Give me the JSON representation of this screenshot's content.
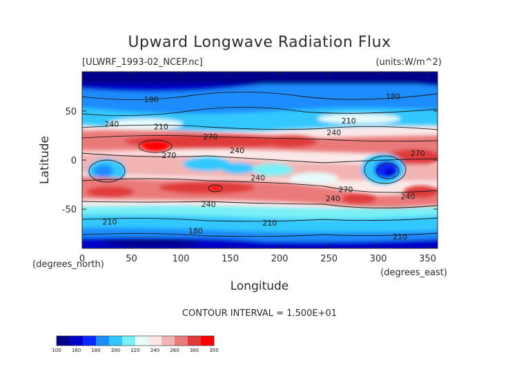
{
  "title": "Upward Longwave Radiation Flux",
  "file_label": "[ULWRF_1993-02_NCEP.nc]",
  "units_label": "(units:W/m^2)",
  "xlabel": "Longitude",
  "ylabel": "Latitude",
  "x_unit_label": "(degrees_east)",
  "y_unit_label": "(degrees_north)",
  "contour_interval_label": "CONTOUR INTERVAL = 1.500E+01",
  "chart_data": {
    "type": "heatmap",
    "title": "Upward Longwave Radiation Flux",
    "xlabel": "Longitude",
    "ylabel": "Latitude",
    "xlim": [
      0,
      360
    ],
    "ylim": [
      -90,
      90
    ],
    "x_ticks": [
      0,
      50,
      100,
      150,
      200,
      250,
      300,
      350
    ],
    "y_ticks": [
      50,
      0,
      -50
    ],
    "y_tick_labels": [
      "50",
      "0",
      "-50"
    ],
    "contour_interval": 15,
    "contour_labels": [
      {
        "text": "180",
        "lon": 70,
        "lat": 62
      },
      {
        "text": "180",
        "lon": 315,
        "lat": 65
      },
      {
        "text": "180",
        "lon": 115,
        "lat": -72
      },
      {
        "text": "210",
        "lon": 80,
        "lat": 34
      },
      {
        "text": "210",
        "lon": 270,
        "lat": 40
      },
      {
        "text": "210",
        "lon": 28,
        "lat": -63
      },
      {
        "text": "210",
        "lon": 190,
        "lat": -64
      },
      {
        "text": "210",
        "lon": 322,
        "lat": -78
      },
      {
        "text": "240",
        "lon": 30,
        "lat": 37
      },
      {
        "text": "240",
        "lon": 255,
        "lat": 28
      },
      {
        "text": "240",
        "lon": 157,
        "lat": 10
      },
      {
        "text": "240",
        "lon": 178,
        "lat": -18
      },
      {
        "text": "240",
        "lon": 128,
        "lat": -45
      },
      {
        "text": "240",
        "lon": 254,
        "lat": -39
      },
      {
        "text": "240",
        "lon": 330,
        "lat": -37
      },
      {
        "text": "270",
        "lon": 130,
        "lat": 24
      },
      {
        "text": "270",
        "lon": 88,
        "lat": 5
      },
      {
        "text": "270",
        "lon": 267,
        "lat": -30
      },
      {
        "text": "270",
        "lon": 340,
        "lat": 7
      }
    ],
    "colorbar": {
      "levels": [
        100,
        160,
        180,
        200,
        220,
        240,
        260,
        300,
        350
      ],
      "labels": [
        "100",
        "160",
        "180",
        "200",
        "220",
        "240",
        "260",
        "300",
        "350"
      ],
      "colors": [
        "#00008a",
        "#0000c8",
        "#0a28ff",
        "#1e8cff",
        "#32c8ff",
        "#78f0f5",
        "#e8fafa",
        "#fbe9e9",
        "#f2b3b3",
        "#ea7a7a",
        "#e03a3a",
        "#ff0000"
      ]
    }
  }
}
